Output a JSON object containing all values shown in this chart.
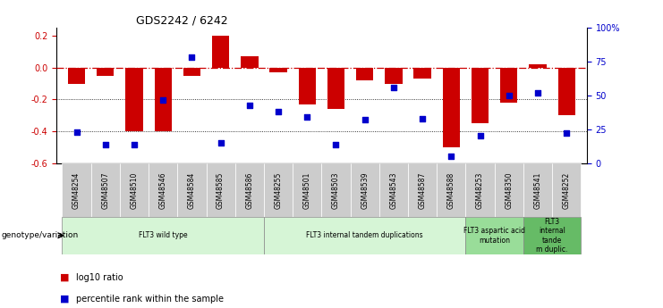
{
  "title": "GDS2242 / 6242",
  "samples": [
    "GSM48254",
    "GSM48507",
    "GSM48510",
    "GSM48546",
    "GSM48584",
    "GSM48585",
    "GSM48586",
    "GSM48255",
    "GSM48501",
    "GSM48503",
    "GSM48539",
    "GSM48543",
    "GSM48587",
    "GSM48588",
    "GSM48253",
    "GSM48350",
    "GSM48541",
    "GSM48252"
  ],
  "log10_ratio": [
    -0.1,
    -0.05,
    -0.4,
    -0.4,
    -0.05,
    0.2,
    0.07,
    -0.03,
    -0.23,
    -0.26,
    -0.08,
    -0.1,
    -0.07,
    -0.5,
    -0.35,
    -0.22,
    0.02,
    -0.3
  ],
  "percentile_rank": [
    23,
    14,
    14,
    47,
    78,
    15,
    43,
    38,
    34,
    14,
    32,
    56,
    33,
    5,
    20,
    50,
    52,
    22
  ],
  "bar_color": "#cc0000",
  "dot_color": "#0000cc",
  "ylim": [
    -0.6,
    0.25
  ],
  "yticks_left": [
    -0.6,
    -0.4,
    -0.2,
    0.0,
    0.2
  ],
  "yticks_right": [
    0,
    25,
    50,
    75,
    100
  ],
  "ytick_right_labels": [
    "0",
    "25",
    "50",
    "75",
    "100%"
  ],
  "groups": [
    {
      "label": "FLT3 wild type",
      "start": 0,
      "end": 6,
      "color": "#d6f5d6"
    },
    {
      "label": "FLT3 internal tandem duplications",
      "start": 7,
      "end": 13,
      "color": "#d6f5d6"
    },
    {
      "label": "FLT3 aspartic acid\nmutation",
      "start": 14,
      "end": 15,
      "color": "#99dd99"
    },
    {
      "label": "FLT3\ninternal\ntande\nm duplic.",
      "start": 16,
      "end": 17,
      "color": "#66bb66"
    }
  ],
  "tick_bg_color": "#cccccc",
  "legend_bar_label": "log10 ratio",
  "legend_dot_label": "percentile rank within the sample",
  "bar_color_leg": "#cc0000",
  "dot_color_leg": "#0000cc",
  "genotype_label": "genotype/variation"
}
